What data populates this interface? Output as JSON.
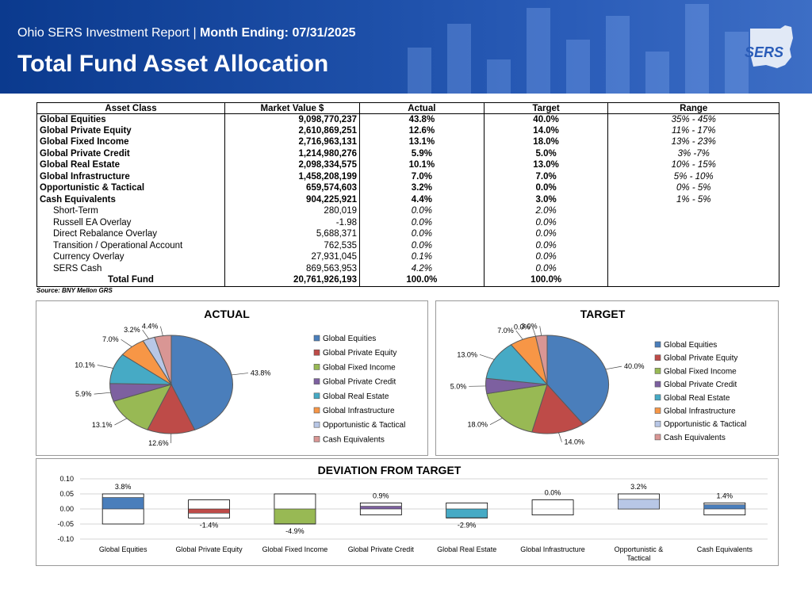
{
  "header": {
    "report_name": "Ohio SERS Investment Report",
    "separator": "|",
    "month_ending": "Month Ending: 07/31/2025",
    "title": "Total Fund Asset Allocation",
    "logo_text": "SERS"
  },
  "table": {
    "headers": [
      "Asset Class",
      "Market Value  $",
      "Actual",
      "Target",
      "Range"
    ],
    "rows": [
      {
        "type": "main",
        "cells": [
          "Global Equities",
          "9,098,770,237",
          "43.8%",
          "40.0%",
          "35% - 45%"
        ]
      },
      {
        "type": "main",
        "cells": [
          "Global Private Equity",
          "2,610,869,251",
          "12.6%",
          "14.0%",
          "11% - 17%"
        ]
      },
      {
        "type": "main",
        "cells": [
          "Global Fixed Income",
          "2,716,963,131",
          "13.1%",
          "18.0%",
          "13% - 23%"
        ]
      },
      {
        "type": "main",
        "cells": [
          "Global Private Credit",
          "1,214,980,276",
          "5.9%",
          "5.0%",
          "3% -7%"
        ]
      },
      {
        "type": "main",
        "cells": [
          "Global Real Estate",
          "2,098,334,575",
          "10.1%",
          "13.0%",
          "10% - 15%"
        ]
      },
      {
        "type": "main",
        "cells": [
          "Global Infrastructure",
          "1,458,208,199",
          "7.0%",
          "7.0%",
          "5% - 10%"
        ]
      },
      {
        "type": "main",
        "cells": [
          "Opportunistic & Tactical",
          "659,574,603",
          "3.2%",
          "0.0%",
          "0% - 5%"
        ]
      },
      {
        "type": "main",
        "cells": [
          "Cash Equivalents",
          "904,225,921",
          "4.4%",
          "3.0%",
          "1% - 5%"
        ]
      },
      {
        "type": "sub",
        "cells": [
          "Short-Term",
          "280,019",
          "0.0%",
          "2.0%",
          ""
        ]
      },
      {
        "type": "sub",
        "cells": [
          "Russell EA Overlay",
          "-1.98",
          "0.0%",
          "0.0%",
          ""
        ]
      },
      {
        "type": "sub",
        "cells": [
          "Direct Rebalance Overlay",
          "5,688,371",
          "0.0%",
          "0.0%",
          ""
        ]
      },
      {
        "type": "sub",
        "cells": [
          "Transition / Operational Account",
          "762,535",
          "0.0%",
          "0.0%",
          ""
        ]
      },
      {
        "type": "sub",
        "cells": [
          "Currency Overlay",
          "27,931,045",
          "0.1%",
          "0.0%",
          ""
        ]
      },
      {
        "type": "sub",
        "cells": [
          "SERS Cash",
          "869,563,953",
          "4.2%",
          "0.0%",
          ""
        ]
      },
      {
        "type": "total",
        "cells": [
          "Total Fund",
          "20,761,926,193",
          "100.0%",
          "100.0%",
          ""
        ]
      }
    ],
    "source": "Source: BNY Mellon GRS"
  },
  "chart_data": [
    {
      "type": "pie",
      "title": "ACTUAL",
      "categories": [
        "Global Equities",
        "Global Private Equity",
        "Global Fixed Income",
        "Global Private Credit",
        "Global Real Estate",
        "Global Infrastructure",
        "Opportunistic & Tactical",
        "Cash Equivalents"
      ],
      "values": [
        43.8,
        12.6,
        13.1,
        5.9,
        10.1,
        7.0,
        3.2,
        4.4
      ],
      "labels": [
        "43.8%",
        "12.6%",
        "13.1%",
        "5.9%",
        "10.1%",
        "7.0%",
        "3.2%",
        "4.4%"
      ],
      "colors": [
        "#4a7ebb",
        "#be4b48",
        "#98b954",
        "#7d60a0",
        "#46aac5",
        "#f79646",
        "#b8c7e6",
        "#d99694"
      ],
      "legend": "right"
    },
    {
      "type": "pie",
      "title": "TARGET",
      "categories": [
        "Global Equities",
        "Global Private Equity",
        "Global Fixed Income",
        "Global Private Credit",
        "Global Real Estate",
        "Global Infrastructure",
        "Opportunistic & Tactical",
        "Cash Equivalents"
      ],
      "values": [
        40.0,
        14.0,
        18.0,
        5.0,
        13.0,
        7.0,
        0.0,
        3.0
      ],
      "labels": [
        "40.0%",
        "14.0%",
        "18.0%",
        "5.0%",
        "13.0%",
        "7.0%",
        "0.0%",
        "3.0%"
      ],
      "colors": [
        "#4a7ebb",
        "#be4b48",
        "#98b954",
        "#7d60a0",
        "#46aac5",
        "#f79646",
        "#b8c7e6",
        "#d99694"
      ],
      "legend": "right"
    },
    {
      "type": "bar",
      "title": "DEVIATION FROM TARGET",
      "categories": [
        "Global Equities",
        "Global Private Equity",
        "Global Fixed Income",
        "Global Private Credit",
        "Global Real Estate",
        "Global Infrastructure",
        "Opportunistic & Tactical",
        "Cash Equivalents"
      ],
      "values": [
        0.038,
        -0.014,
        -0.049,
        0.009,
        -0.029,
        0.0,
        0.032,
        0.014
      ],
      "labels": [
        "3.8%",
        "-1.4%",
        "-4.9%",
        "0.9%",
        "-2.9%",
        "0.0%",
        "3.2%",
        "1.4%"
      ],
      "range_low": [
        -0.05,
        -0.03,
        -0.05,
        -0.02,
        -0.03,
        -0.02,
        0.0,
        -0.02
      ],
      "range_high": [
        0.05,
        0.03,
        0.05,
        0.02,
        0.02,
        0.03,
        0.05,
        0.02
      ],
      "yticks": [
        "0.10",
        "0.05",
        "0.00",
        "-0.05",
        "-0.10"
      ],
      "ylim": [
        -0.1,
        0.1
      ],
      "grid": true,
      "colors": [
        "#4a7ebb",
        "#be4b48",
        "#98b954",
        "#7d60a0",
        "#46aac5",
        "#f79646",
        "#b8c7e6",
        "#4a7ebb"
      ]
    }
  ]
}
